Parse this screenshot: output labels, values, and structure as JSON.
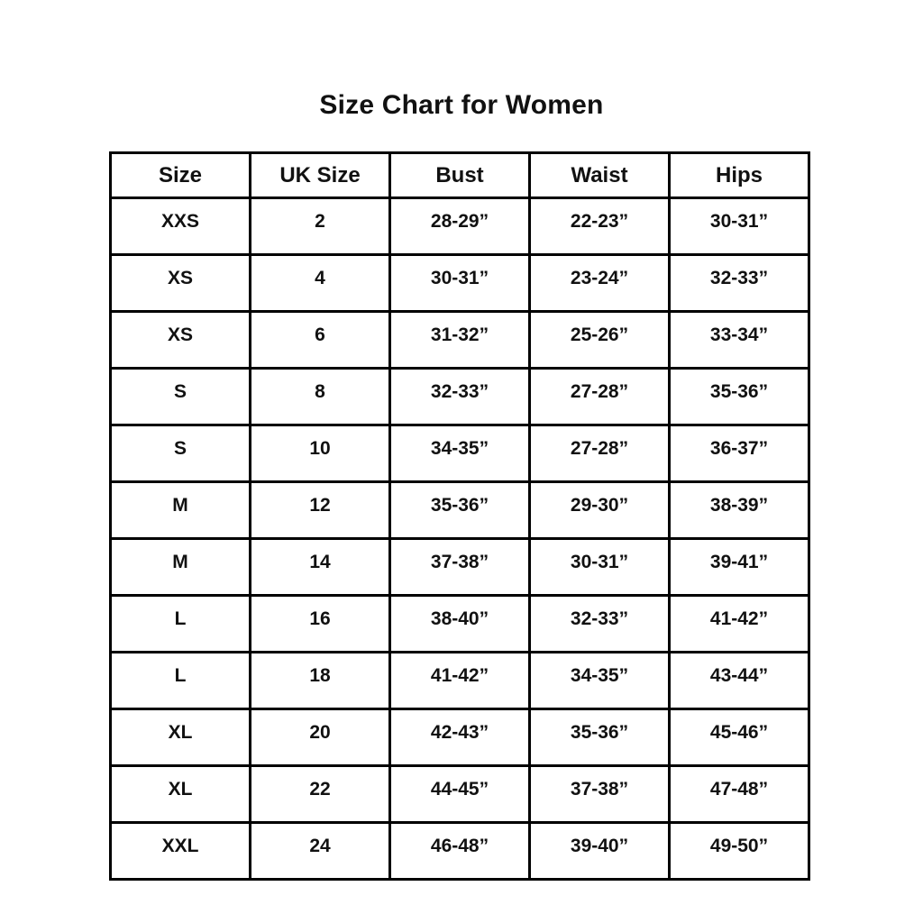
{
  "title": "Size Chart for Women",
  "chart_data": {
    "type": "table",
    "title": "Size Chart for Women",
    "headers": [
      "Size",
      "UK Size",
      "Bust",
      "Waist",
      "Hips"
    ],
    "rows": [
      [
        "XXS",
        "2",
        "28-29”",
        "22-23”",
        "30-31”"
      ],
      [
        "XS",
        "4",
        "30-31”",
        "23-24”",
        "32-33”"
      ],
      [
        "XS",
        "6",
        "31-32”",
        "25-26”",
        "33-34”"
      ],
      [
        "S",
        "8",
        "32-33”",
        "27-28”",
        "35-36”"
      ],
      [
        "S",
        "10",
        "34-35”",
        "27-28”",
        "36-37”"
      ],
      [
        "M",
        "12",
        "35-36”",
        "29-30”",
        "38-39”"
      ],
      [
        "M",
        "14",
        "37-38”",
        "30-31”",
        "39-41”"
      ],
      [
        "L",
        "16",
        "38-40”",
        "32-33”",
        "41-42”"
      ],
      [
        "L",
        "18",
        "41-42”",
        "34-35”",
        "43-44”"
      ],
      [
        "XL",
        "20",
        "42-43”",
        "35-36”",
        "45-46”"
      ],
      [
        "XL",
        "22",
        "44-45”",
        "37-38”",
        "47-48”"
      ],
      [
        "XXL",
        "24",
        "46-48”",
        "39-40”",
        "49-50”"
      ]
    ],
    "layout": {
      "grid": "full-borders",
      "legend": "none",
      "column_count": 5,
      "row_count": 12
    },
    "colors": {
      "border": "#000000",
      "text": "#111111",
      "background": "#ffffff"
    }
  }
}
